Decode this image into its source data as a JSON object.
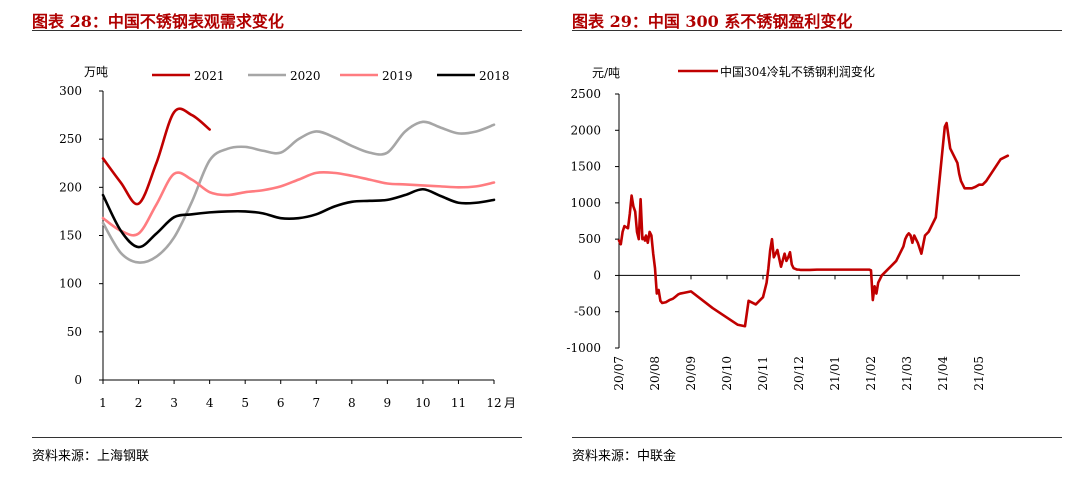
{
  "left": {
    "title": "图表 28：中国不锈钢表观需求变化",
    "source": "资料来源：上海钢联",
    "chart_data": {
      "type": "line",
      "ylabel": "万吨",
      "xlabel_suffix": "月",
      "x": [
        1,
        2,
        3,
        4,
        5,
        6,
        7,
        8,
        9,
        10,
        11,
        12
      ],
      "x_tick_labels": [
        "1",
        "2",
        "3",
        "4",
        "5",
        "6",
        "7",
        "8",
        "9",
        "10",
        "11",
        "12"
      ],
      "xlim": [
        1,
        12
      ],
      "ylim": [
        0,
        300
      ],
      "y_ticks": [
        0,
        50,
        100,
        150,
        200,
        250,
        300
      ],
      "legend_position": "top",
      "grid": false,
      "series": [
        {
          "name": "2021",
          "color": "#c00000",
          "x": [
            1,
            1.5,
            2,
            2.5,
            3,
            3.5,
            4
          ],
          "values": [
            230,
            205,
            183,
            225,
            278,
            275,
            260
          ]
        },
        {
          "name": "2020",
          "color": "#a6a6a6",
          "x": [
            1,
            1.5,
            2,
            2.5,
            3,
            3.5,
            4,
            4.5,
            5,
            5.5,
            6,
            6.5,
            7,
            7.5,
            8,
            8.5,
            9,
            9.5,
            10,
            10.5,
            11,
            11.5,
            12
          ],
          "values": [
            163,
            132,
            122,
            128,
            148,
            185,
            228,
            240,
            242,
            238,
            236,
            250,
            258,
            252,
            243,
            236,
            236,
            258,
            268,
            262,
            256,
            258,
            265
          ]
        },
        {
          "name": "2019",
          "color": "#ff7c80",
          "x": [
            1,
            1.5,
            2,
            2.5,
            3,
            3.5,
            4,
            4.5,
            5,
            5.5,
            6,
            6.5,
            7,
            7.5,
            8,
            8.5,
            9,
            9.5,
            10,
            10.5,
            11,
            11.5,
            12
          ],
          "values": [
            168,
            155,
            152,
            182,
            214,
            208,
            195,
            192,
            195,
            197,
            201,
            208,
            215,
            215,
            212,
            208,
            204,
            203,
            202,
            201,
            200,
            201,
            205
          ]
        },
        {
          "name": "2018",
          "color": "#000000",
          "x": [
            1,
            1.5,
            2,
            2.5,
            3,
            3.5,
            4,
            4.5,
            5,
            5.5,
            6,
            6.5,
            7,
            7.5,
            8,
            8.5,
            9,
            9.5,
            10,
            10.5,
            11,
            11.5,
            12
          ],
          "values": [
            192,
            155,
            138,
            152,
            169,
            172,
            174,
            175,
            175,
            173,
            168,
            168,
            172,
            180,
            185,
            186,
            187,
            192,
            198,
            191,
            184,
            184,
            187
          ]
        }
      ]
    }
  },
  "right": {
    "title": "图表 29：中国 300 系不锈钢盈利变化",
    "source": "资料来源：中联金",
    "chart_data": {
      "type": "line",
      "ylabel": "元/吨",
      "ylim": [
        -1000,
        2500
      ],
      "y_ticks": [
        -1000,
        -500,
        0,
        500,
        1000,
        1500,
        2000,
        2500
      ],
      "x_tick_labels": [
        "20/07",
        "20/08",
        "20/09",
        "20/10",
        "20/11",
        "20/12",
        "21/01",
        "21/02",
        "21/03",
        "21/04",
        "21/05"
      ],
      "legend_position": "top",
      "grid": false,
      "series": [
        {
          "name": "中国304冷轧不锈钢利润变化",
          "color": "#c00000",
          "x": [
            0,
            0.05,
            0.1,
            0.15,
            0.25,
            0.3,
            0.35,
            0.4,
            0.45,
            0.5,
            0.55,
            0.6,
            0.65,
            0.7,
            0.72,
            0.75,
            0.8,
            0.85,
            0.9,
            0.95,
            1.0,
            1.05,
            1.1,
            1.15,
            1.2,
            1.3,
            1.4,
            1.5,
            1.55,
            1.6,
            1.65,
            1.7,
            1.8,
            1.9,
            2.0,
            2.6,
            3.3,
            3.5,
            3.6,
            3.8,
            4.0,
            4.1,
            4.15,
            4.2,
            4.25,
            4.3,
            4.4,
            4.5,
            4.6,
            4.65,
            4.7,
            4.75,
            4.8,
            4.85,
            4.9,
            4.95,
            5.0,
            5.05,
            5.1,
            5.15,
            5.2,
            5.3,
            5.5,
            6.0,
            6.5,
            6.95,
            7.0,
            7.05,
            7.1,
            7.15,
            7.2,
            7.25,
            7.3,
            7.5,
            7.7,
            7.8,
            7.9,
            7.95,
            8.0,
            8.05,
            8.1,
            8.15,
            8.2,
            8.3,
            8.4,
            8.5,
            8.6,
            8.7,
            8.8,
            8.9,
            9.0,
            9.05,
            9.1,
            9.2,
            9.3,
            9.4,
            9.45,
            9.5,
            9.6,
            9.8,
            9.9,
            10.0,
            10.1,
            10.2,
            10.4,
            10.6,
            10.8
          ],
          "values": [
            480,
            430,
            600,
            680,
            650,
            850,
            1100,
            950,
            880,
            600,
            500,
            1050,
            500,
            520,
            480,
            550,
            450,
            600,
            550,
            300,
            100,
            -250,
            -200,
            -350,
            -380,
            -370,
            -340,
            -320,
            -300,
            -280,
            -260,
            -250,
            -240,
            -230,
            -220,
            -450,
            -680,
            -700,
            -350,
            -400,
            -300,
            -100,
            100,
            350,
            500,
            250,
            350,
            120,
            300,
            200,
            250,
            320,
            150,
            100,
            90,
            80,
            80,
            75,
            75,
            75,
            75,
            75,
            80,
            80,
            80,
            80,
            70,
            -340,
            -150,
            -250,
            -100,
            -50,
            0,
            100,
            200,
            300,
            400,
            500,
            550,
            580,
            550,
            450,
            550,
            450,
            300,
            550,
            600,
            700,
            800,
            1300,
            1800,
            2050,
            2100,
            1750,
            1650,
            1550,
            1400,
            1300,
            1200,
            1200,
            1220,
            1250,
            1250,
            1300,
            1450,
            1600,
            1650
          ]
        }
      ]
    }
  }
}
